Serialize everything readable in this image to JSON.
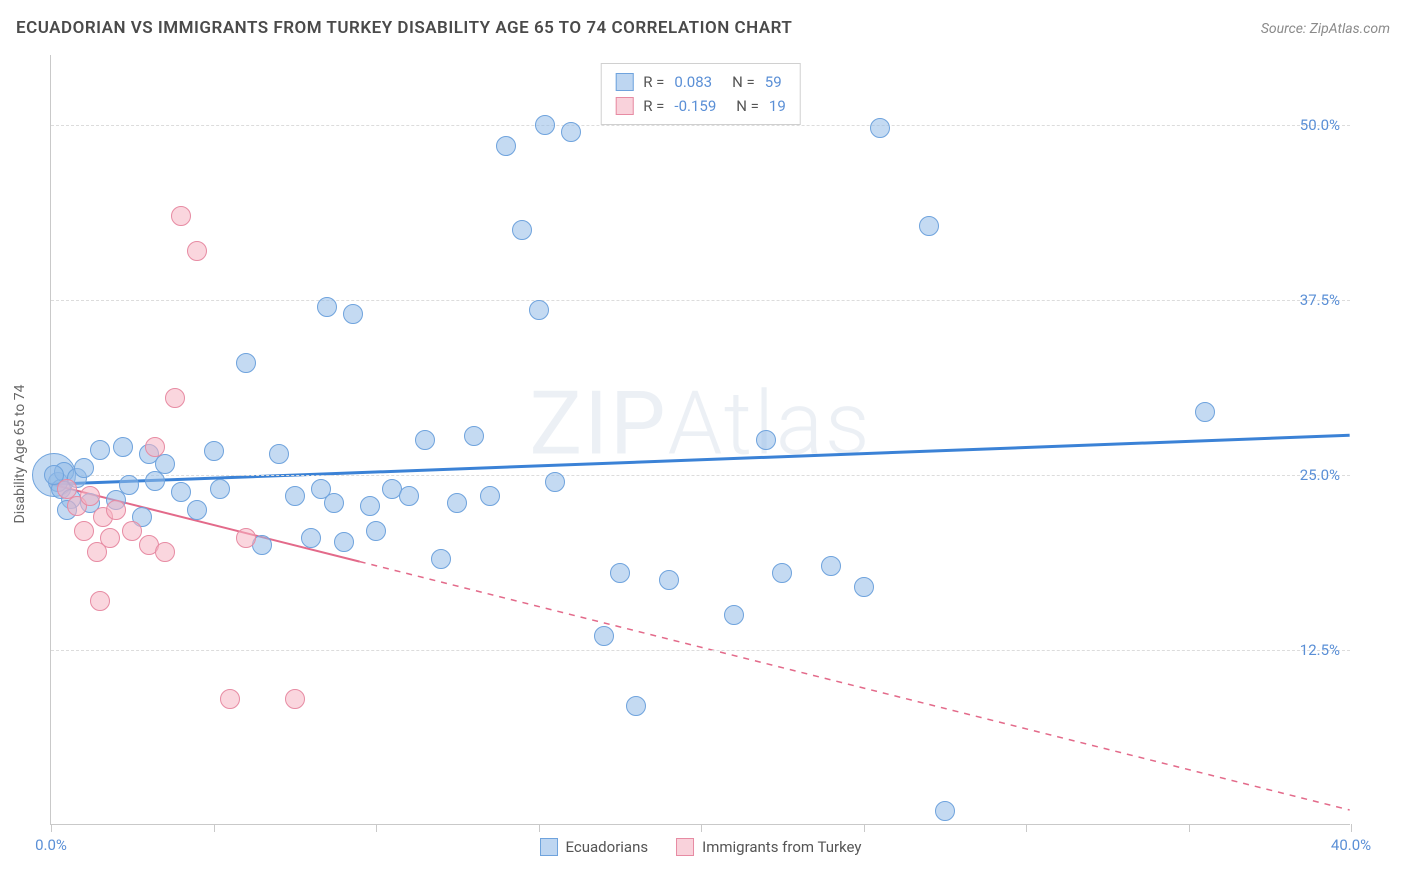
{
  "title": "ECUADORIAN VS IMMIGRANTS FROM TURKEY DISABILITY AGE 65 TO 74 CORRELATION CHART",
  "source": "Source: ZipAtlas.com",
  "ylabel": "Disability Age 65 to 74",
  "watermark_a": "ZIP",
  "watermark_b": "Atlas",
  "chart": {
    "type": "scatter",
    "xlim": [
      0,
      40
    ],
    "ylim": [
      0,
      55
    ],
    "xticks": [
      0,
      5,
      10,
      15,
      20,
      25,
      30,
      35,
      40
    ],
    "xtick_labels": {
      "0": "0.0%",
      "40": "40.0%"
    },
    "yticks": [
      12.5,
      25.0,
      37.5,
      50.0
    ],
    "ytick_labels": [
      "12.5%",
      "25.0%",
      "37.5%",
      "50.0%"
    ],
    "grid_color": "#dcdcdc",
    "background_color": "#ffffff",
    "axis_color": "#c9c9c9",
    "point_radius": 10,
    "series": [
      {
        "name": "Ecuadorians",
        "color_fill": "rgba(147,187,232,0.55)",
        "color_stroke": "#6fa3dd",
        "R": "0.083",
        "N": "59",
        "trend": {
          "y_at_x0": 24.3,
          "y_at_xmax": 27.8,
          "solid_until_x": 40,
          "stroke": "#3b82d6",
          "width": 3
        },
        "points": [
          [
            0.2,
            24.5
          ],
          [
            0.3,
            24.0
          ],
          [
            0.4,
            25.2
          ],
          [
            0.6,
            23.3
          ],
          [
            0.8,
            24.8
          ],
          [
            1.0,
            25.5
          ],
          [
            1.2,
            23.0
          ],
          [
            1.5,
            26.8
          ],
          [
            2.0,
            23.2
          ],
          [
            2.2,
            27.0
          ],
          [
            2.4,
            24.3
          ],
          [
            2.8,
            22.0
          ],
          [
            3.0,
            26.5
          ],
          [
            3.2,
            24.6
          ],
          [
            3.5,
            25.8
          ],
          [
            4.0,
            23.8
          ],
          [
            4.5,
            22.5
          ],
          [
            5.0,
            26.7
          ],
          [
            5.2,
            24.0
          ],
          [
            6.0,
            33.0
          ],
          [
            6.5,
            20.0
          ],
          [
            7.0,
            26.5
          ],
          [
            7.5,
            23.5
          ],
          [
            8.0,
            20.5
          ],
          [
            8.3,
            24.0
          ],
          [
            8.5,
            37.0
          ],
          [
            8.7,
            23.0
          ],
          [
            9.0,
            20.2
          ],
          [
            9.3,
            36.5
          ],
          [
            9.8,
            22.8
          ],
          [
            10.0,
            21.0
          ],
          [
            10.5,
            24.0
          ],
          [
            11.0,
            23.5
          ],
          [
            11.5,
            27.5
          ],
          [
            12.0,
            19.0
          ],
          [
            12.5,
            23.0
          ],
          [
            13.0,
            27.8
          ],
          [
            13.5,
            23.5
          ],
          [
            14.0,
            48.5
          ],
          [
            14.5,
            42.5
          ],
          [
            15.0,
            36.8
          ],
          [
            15.2,
            50.0
          ],
          [
            15.5,
            24.5
          ],
          [
            16.0,
            49.5
          ],
          [
            17.0,
            13.5
          ],
          [
            17.5,
            18.0
          ],
          [
            18.0,
            8.5
          ],
          [
            19.0,
            17.5
          ],
          [
            21.0,
            15.0
          ],
          [
            22.0,
            27.5
          ],
          [
            22.5,
            18.0
          ],
          [
            24.0,
            18.5
          ],
          [
            25.0,
            17.0
          ],
          [
            25.5,
            49.8
          ],
          [
            27.0,
            42.8
          ],
          [
            27.5,
            1.0
          ],
          [
            35.5,
            29.5
          ],
          [
            0.1,
            25.0
          ],
          [
            0.5,
            22.5
          ]
        ],
        "big_point": [
          0.1,
          25.0,
          22
        ]
      },
      {
        "name": "Immigrants from Turkey",
        "color_fill": "rgba(245,180,195,0.55)",
        "color_stroke": "#e78ba3",
        "R": "-0.159",
        "N": "19",
        "trend": {
          "y_at_x0": 24.3,
          "y_at_xmax": 1.0,
          "solid_until_x": 9.5,
          "stroke": "#e36a8a",
          "width": 2
        },
        "points": [
          [
            0.5,
            24.0
          ],
          [
            0.8,
            22.8
          ],
          [
            1.0,
            21.0
          ],
          [
            1.2,
            23.5
          ],
          [
            1.4,
            19.5
          ],
          [
            1.6,
            22.0
          ],
          [
            1.8,
            20.5
          ],
          [
            1.5,
            16.0
          ],
          [
            2.0,
            22.5
          ],
          [
            2.5,
            21.0
          ],
          [
            3.0,
            20.0
          ],
          [
            3.2,
            27.0
          ],
          [
            3.5,
            19.5
          ],
          [
            3.8,
            30.5
          ],
          [
            4.0,
            43.5
          ],
          [
            4.5,
            41.0
          ],
          [
            5.5,
            9.0
          ],
          [
            6.0,
            20.5
          ],
          [
            7.5,
            9.0
          ]
        ]
      }
    ]
  }
}
